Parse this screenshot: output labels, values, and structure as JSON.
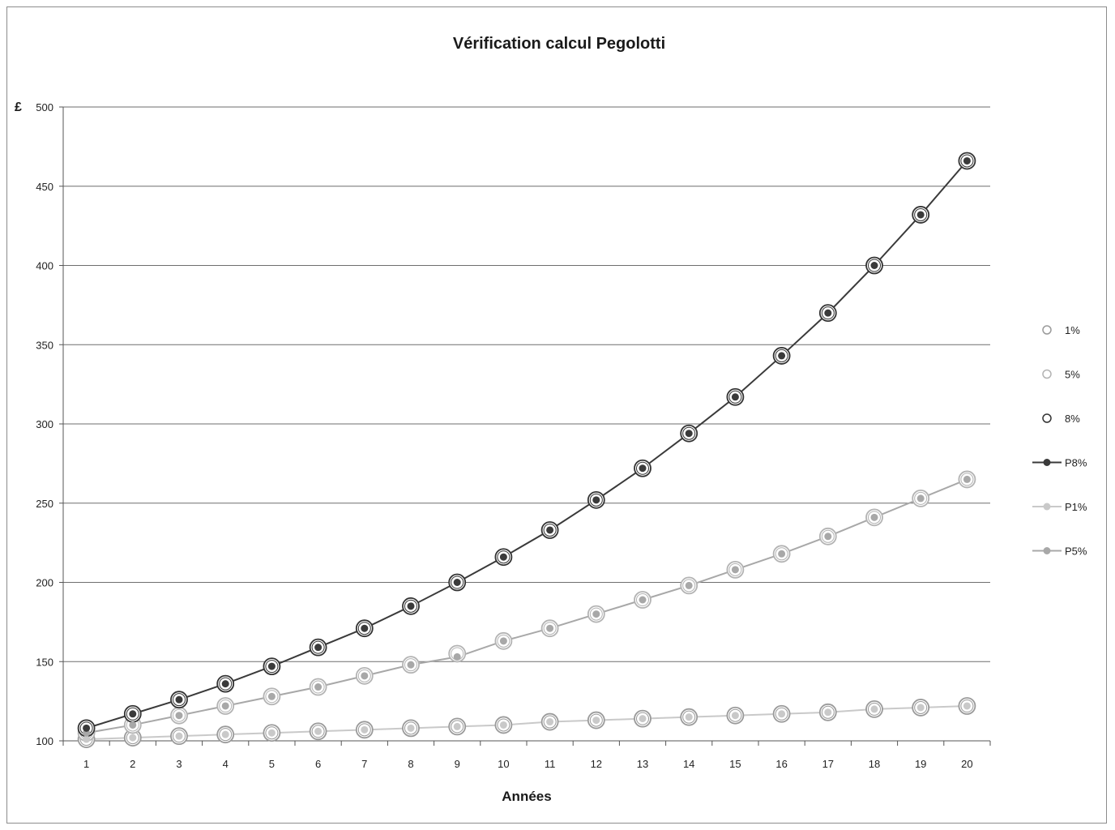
{
  "chart_data": {
    "type": "line",
    "title": "Vérification calcul Pegolotti",
    "xlabel": "Années",
    "ylabel": "",
    "y_unit": "£",
    "ylim": [
      100,
      500
    ],
    "yticks": [
      100,
      150,
      200,
      250,
      300,
      350,
      400,
      450,
      500
    ],
    "grid": "horizontal",
    "legend_position": "right",
    "categories": [
      "1",
      "2",
      "3",
      "4",
      "5",
      "6",
      "7",
      "8",
      "9",
      "10",
      "11",
      "12",
      "13",
      "14",
      "15",
      "16",
      "17",
      "18",
      "19",
      "20"
    ],
    "series": [
      {
        "name": "1%",
        "style": "marker-ring",
        "color": "#9a9a9a",
        "values": [
          101,
          102,
          103,
          104,
          105,
          106,
          107,
          108,
          109,
          110,
          112,
          113,
          114,
          115,
          116,
          117,
          118,
          120,
          121,
          122
        ]
      },
      {
        "name": "5%",
        "style": "marker-ring",
        "color": "#b3b3b3",
        "values": [
          105,
          110,
          116,
          122,
          128,
          134,
          141,
          148,
          155,
          163,
          171,
          180,
          189,
          198,
          208,
          218,
          229,
          241,
          253,
          265
        ]
      },
      {
        "name": "8%",
        "style": "marker-ring",
        "color": "#333333",
        "values": [
          108,
          117,
          126,
          136,
          147,
          159,
          171,
          185,
          200,
          216,
          233,
          252,
          272,
          294,
          317,
          343,
          370,
          400,
          432,
          466
        ]
      },
      {
        "name": "P8%",
        "style": "line-dot",
        "color": "#3a3a3a",
        "values": [
          108,
          117,
          126,
          136,
          147,
          159,
          171,
          185,
          200,
          216,
          233,
          252,
          272,
          294,
          317,
          343,
          370,
          400,
          432,
          466
        ]
      },
      {
        "name": "P1%",
        "style": "line-dot",
        "color": "#c9c9c9",
        "values": [
          101,
          102,
          103,
          104,
          105,
          106,
          107,
          108,
          109,
          110,
          112,
          113,
          114,
          115,
          116,
          117,
          118,
          120,
          121,
          122
        ]
      },
      {
        "name": "P5%",
        "style": "line-dot",
        "color": "#a8a8a8",
        "values": [
          105,
          110,
          116,
          122,
          128,
          134,
          141,
          148,
          153,
          163,
          171,
          180,
          189,
          198,
          208,
          218,
          229,
          241,
          253,
          265
        ]
      }
    ]
  }
}
